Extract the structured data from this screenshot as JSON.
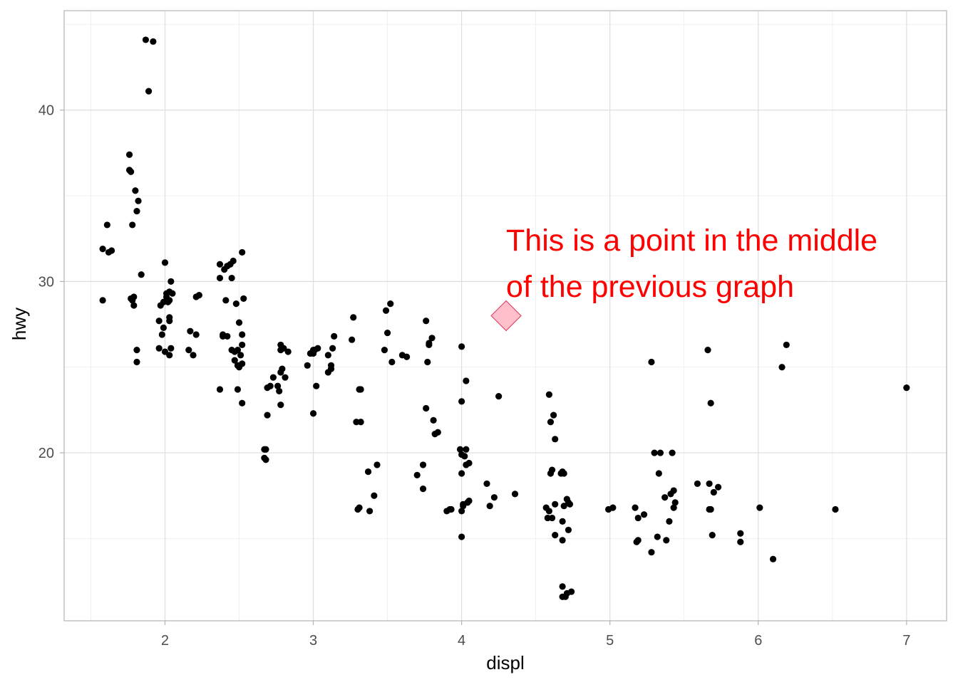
{
  "chart_data": {
    "type": "scatter",
    "xlabel": "displ",
    "ylabel": "hwy",
    "xlim": [
      1.32,
      7.27
    ],
    "ylim": [
      10.2,
      45.8
    ],
    "x_ticks": [
      2,
      3,
      4,
      5,
      6,
      7
    ],
    "y_ticks": [
      20,
      30,
      40
    ],
    "x_tick_labels": [
      "2",
      "3",
      "4",
      "5",
      "6",
      "7"
    ],
    "y_tick_labels": [
      "20",
      "30",
      "40"
    ],
    "grid": true,
    "series": [
      {
        "marker": "point",
        "color": "#000000",
        "points": [
          [
            1.58,
            28.9
          ],
          [
            1.58,
            31.9
          ],
          [
            1.61,
            33.3
          ],
          [
            1.62,
            31.7
          ],
          [
            1.64,
            31.8
          ],
          [
            1.76,
            37.4
          ],
          [
            1.76,
            36.5
          ],
          [
            1.77,
            36.4
          ],
          [
            1.77,
            29.0
          ],
          [
            1.78,
            33.3
          ],
          [
            1.78,
            28.9
          ],
          [
            1.79,
            29.1
          ],
          [
            1.79,
            28.6
          ],
          [
            1.8,
            35.3
          ],
          [
            1.81,
            34.1
          ],
          [
            1.82,
            34.7
          ],
          [
            1.81,
            26.0
          ],
          [
            1.81,
            25.3
          ],
          [
            1.84,
            30.4
          ],
          [
            1.87,
            44.1
          ],
          [
            1.89,
            41.1
          ],
          [
            1.92,
            44.0
          ],
          [
            1.96,
            27.7
          ],
          [
            1.96,
            26.1
          ],
          [
            1.97,
            28.6
          ],
          [
            1.98,
            26.9
          ],
          [
            1.99,
            28.8
          ],
          [
            1.99,
            27.3
          ],
          [
            2.0,
            25.9
          ],
          [
            2.01,
            29.3
          ],
          [
            2.0,
            31.1
          ],
          [
            2.01,
            29.1
          ],
          [
            2.02,
            28.8
          ],
          [
            2.03,
            28.9
          ],
          [
            2.03,
            27.9
          ],
          [
            2.03,
            27.7
          ],
          [
            2.03,
            25.7
          ],
          [
            2.03,
            29.4
          ],
          [
            2.04,
            26.1
          ],
          [
            2.04,
            30.0
          ],
          [
            2.05,
            29.3
          ],
          [
            2.16,
            26.0
          ],
          [
            2.17,
            27.1
          ],
          [
            2.19,
            25.7
          ],
          [
            2.21,
            26.9
          ],
          [
            2.21,
            29.1
          ],
          [
            2.23,
            29.2
          ],
          [
            2.37,
            23.7
          ],
          [
            2.37,
            31.0
          ],
          [
            2.37,
            30.2
          ],
          [
            2.39,
            26.8
          ],
          [
            2.39,
            26.9
          ],
          [
            2.4,
            30.7
          ],
          [
            2.41,
            28.9
          ],
          [
            2.42,
            26.8
          ],
          [
            2.42,
            30.9
          ],
          [
            2.44,
            31.0
          ],
          [
            2.45,
            30.2
          ],
          [
            2.46,
            31.2
          ],
          [
            2.45,
            26.0
          ],
          [
            2.47,
            25.9
          ],
          [
            2.47,
            25.4
          ],
          [
            2.48,
            28.7
          ],
          [
            2.49,
            25.1
          ],
          [
            2.49,
            23.7
          ],
          [
            2.49,
            26.0
          ],
          [
            2.5,
            27.6
          ],
          [
            2.51,
            25.7
          ],
          [
            2.5,
            25.0
          ],
          [
            2.52,
            26.9
          ],
          [
            2.52,
            31.7
          ],
          [
            2.52,
            25.2
          ],
          [
            2.52,
            26.3
          ],
          [
            2.53,
            29.0
          ],
          [
            2.52,
            22.9
          ],
          [
            2.67,
            20.2
          ],
          [
            2.67,
            19.7
          ],
          [
            2.68,
            19.6
          ],
          [
            2.68,
            20.2
          ],
          [
            2.69,
            23.8
          ],
          [
            2.69,
            22.2
          ],
          [
            2.71,
            23.9
          ],
          [
            2.73,
            24.4
          ],
          [
            2.76,
            23.9
          ],
          [
            2.77,
            23.6
          ],
          [
            2.78,
            26.3
          ],
          [
            2.78,
            24.7
          ],
          [
            2.78,
            26.0
          ],
          [
            2.78,
            22.8
          ],
          [
            2.79,
            24.9
          ],
          [
            2.8,
            26.1
          ],
          [
            2.81,
            24.4
          ],
          [
            2.83,
            25.9
          ],
          [
            2.96,
            25.1
          ],
          [
            2.98,
            25.8
          ],
          [
            3.0,
            26.0
          ],
          [
            3.0,
            25.8
          ],
          [
            3.0,
            22.3
          ],
          [
            3.01,
            26.0
          ],
          [
            3.02,
            23.9
          ],
          [
            3.03,
            26.1
          ],
          [
            3.1,
            25.7
          ],
          [
            3.1,
            24.7
          ],
          [
            3.12,
            25.1
          ],
          [
            3.12,
            24.9
          ],
          [
            3.13,
            26.1
          ],
          [
            3.14,
            26.8
          ],
          [
            3.27,
            27.9
          ],
          [
            3.26,
            26.6
          ],
          [
            3.29,
            21.8
          ],
          [
            3.3,
            16.7
          ],
          [
            3.31,
            16.8
          ],
          [
            3.31,
            23.7
          ],
          [
            3.32,
            23.7
          ],
          [
            3.32,
            21.8
          ],
          [
            3.37,
            18.9
          ],
          [
            3.38,
            16.6
          ],
          [
            3.41,
            17.5
          ],
          [
            3.43,
            19.3
          ],
          [
            3.48,
            26.0
          ],
          [
            3.49,
            28.3
          ],
          [
            3.5,
            27.0
          ],
          [
            3.52,
            28.7
          ],
          [
            3.53,
            25.3
          ],
          [
            3.6,
            25.7
          ],
          [
            3.63,
            25.6
          ],
          [
            3.7,
            18.7
          ],
          [
            3.74,
            17.9
          ],
          [
            3.74,
            19.3
          ],
          [
            3.76,
            27.7
          ],
          [
            3.76,
            22.6
          ],
          [
            3.77,
            25.3
          ],
          [
            3.78,
            26.3
          ],
          [
            3.78,
            26.4
          ],
          [
            3.8,
            26.7
          ],
          [
            3.81,
            21.9
          ],
          [
            3.82,
            21.1
          ],
          [
            3.84,
            21.2
          ],
          [
            3.9,
            16.6
          ],
          [
            3.92,
            16.7
          ],
          [
            3.93,
            16.7
          ],
          [
            3.99,
            20.2
          ],
          [
            4.0,
            23.0
          ],
          [
            4.0,
            18.8
          ],
          [
            4.0,
            16.6
          ],
          [
            4.0,
            15.1
          ],
          [
            4.0,
            19.9
          ],
          [
            4.0,
            26.2
          ],
          [
            4.01,
            17.0
          ],
          [
            4.01,
            16.9
          ],
          [
            4.02,
            19.8
          ],
          [
            4.03,
            20.2
          ],
          [
            4.03,
            19.3
          ],
          [
            4.03,
            24.2
          ],
          [
            4.04,
            17.1
          ],
          [
            4.05,
            17.2
          ],
          [
            4.05,
            19.4
          ],
          [
            4.17,
            18.2
          ],
          [
            4.19,
            16.9
          ],
          [
            4.22,
            17.4
          ],
          [
            4.25,
            23.3
          ],
          [
            4.36,
            17.6
          ],
          [
            4.57,
            16.8
          ],
          [
            4.58,
            16.2
          ],
          [
            4.59,
            23.4
          ],
          [
            4.59,
            16.6
          ],
          [
            4.6,
            18.8
          ],
          [
            4.61,
            19.0
          ],
          [
            4.6,
            21.8
          ],
          [
            4.61,
            16.2
          ],
          [
            4.62,
            22.2
          ],
          [
            4.63,
            15.2
          ],
          [
            4.63,
            20.8
          ],
          [
            4.63,
            17.0
          ],
          [
            4.67,
            18.8
          ],
          [
            4.68,
            18.9
          ],
          [
            4.68,
            16.0
          ],
          [
            4.68,
            14.9
          ],
          [
            4.68,
            11.6
          ],
          [
            4.68,
            12.2
          ],
          [
            4.69,
            16.9
          ],
          [
            4.69,
            18.8
          ],
          [
            4.7,
            11.6
          ],
          [
            4.71,
            11.8
          ],
          [
            4.71,
            17.3
          ],
          [
            4.72,
            15.5
          ],
          [
            4.72,
            17.1
          ],
          [
            4.73,
            17.0
          ],
          [
            4.74,
            11.9
          ],
          [
            4.99,
            16.7
          ],
          [
            5.02,
            16.8
          ],
          [
            5.17,
            16.8
          ],
          [
            5.18,
            14.8
          ],
          [
            5.19,
            16.2
          ],
          [
            5.19,
            14.9
          ],
          [
            5.23,
            16.4
          ],
          [
            5.28,
            25.3
          ],
          [
            5.28,
            14.2
          ],
          [
            5.3,
            20.0
          ],
          [
            5.32,
            15.1
          ],
          [
            5.33,
            18.8
          ],
          [
            5.34,
            20.0
          ],
          [
            5.37,
            17.4
          ],
          [
            5.38,
            14.9
          ],
          [
            5.4,
            16.0
          ],
          [
            5.41,
            17.6
          ],
          [
            5.42,
            20.0
          ],
          [
            5.43,
            17.8
          ],
          [
            5.43,
            16.8
          ],
          [
            5.44,
            17.1
          ],
          [
            5.59,
            18.2
          ],
          [
            5.66,
            26.0
          ],
          [
            5.67,
            16.7
          ],
          [
            5.67,
            18.2
          ],
          [
            5.68,
            16.7
          ],
          [
            5.68,
            22.9
          ],
          [
            5.69,
            15.2
          ],
          [
            5.7,
            17.7
          ],
          [
            5.73,
            18.0
          ],
          [
            5.88,
            15.3
          ],
          [
            5.88,
            14.8
          ],
          [
            6.01,
            16.8
          ],
          [
            6.1,
            13.8
          ],
          [
            6.16,
            25.0
          ],
          [
            6.19,
            26.3
          ],
          [
            6.52,
            16.7
          ],
          [
            7.0,
            23.8
          ]
        ]
      },
      {
        "marker": "diamond",
        "color": "#FFC0CB",
        "points": [
          [
            4.3,
            28.0
          ]
        ]
      }
    ],
    "annotations": [
      {
        "x": 4.3,
        "y": 31.8,
        "lines": [
          "This is a point in the middle",
          "of the previous graph"
        ],
        "color": "#FF0000"
      }
    ]
  }
}
